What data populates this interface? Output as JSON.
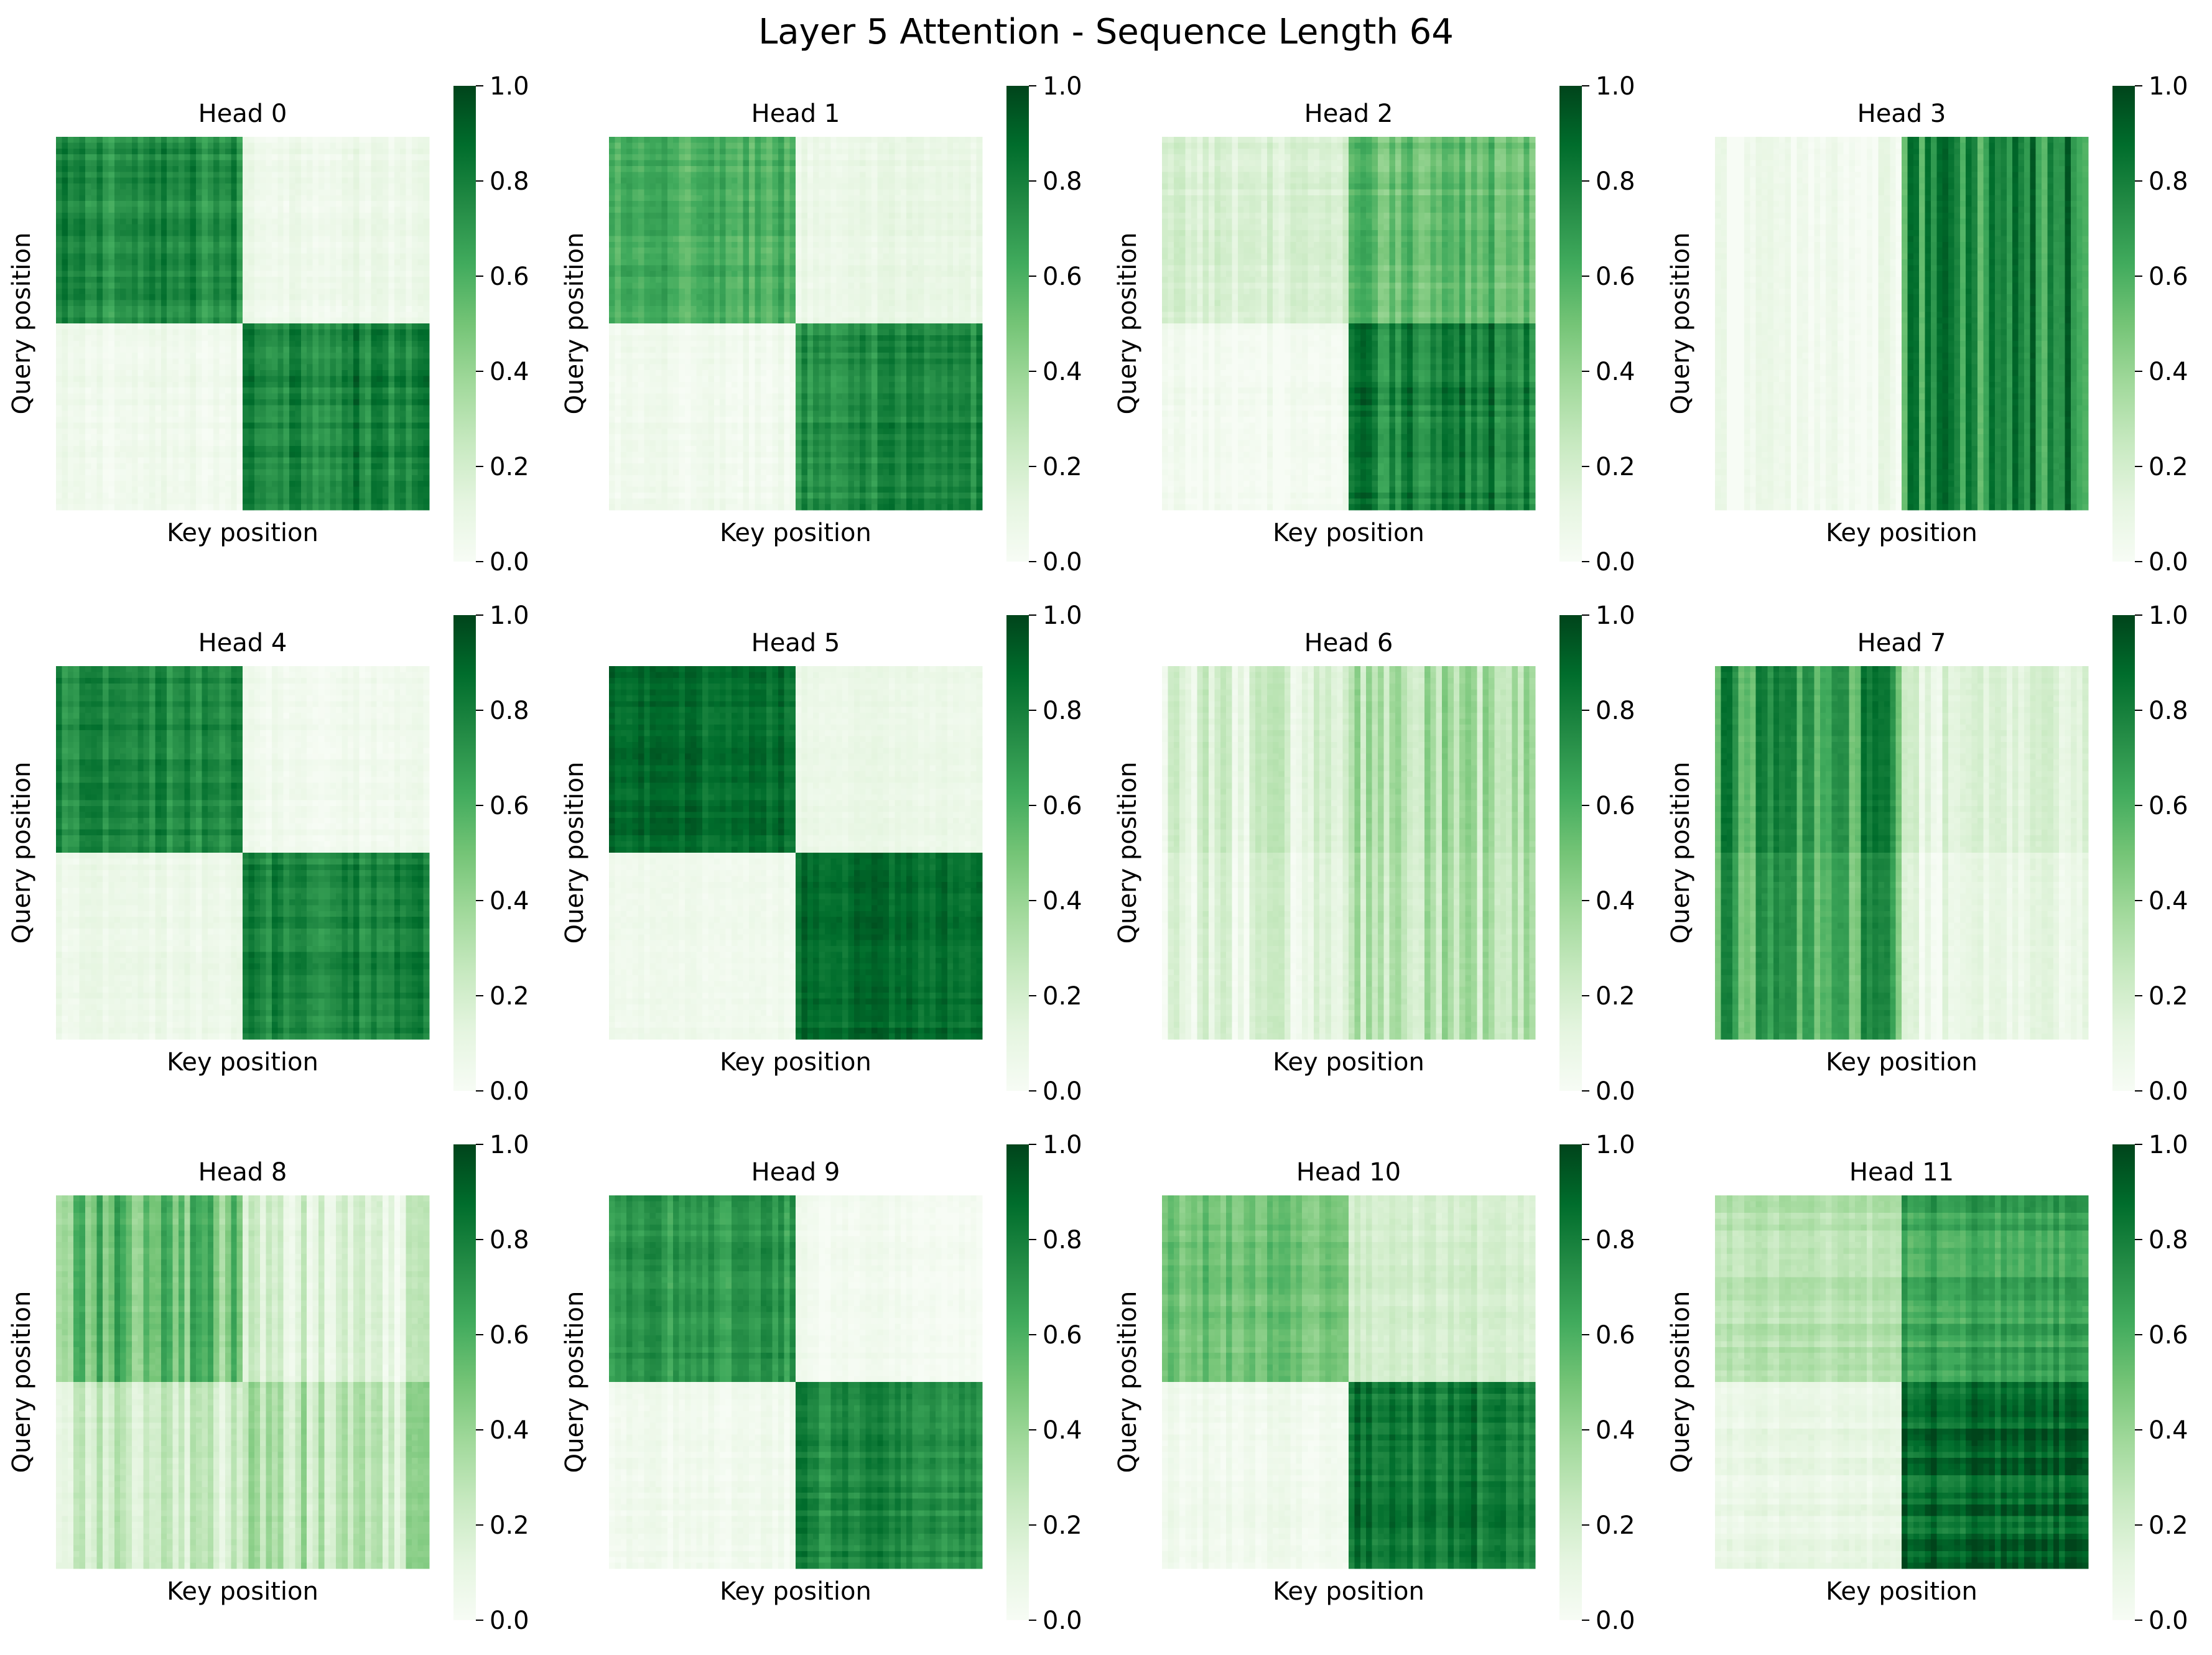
{
  "figure": {
    "title": "Layer 5 Attention - Sequence Length 64"
  },
  "colormap": {
    "name": "Greens",
    "stops": [
      "#f7fcf5",
      "#e5f5e0",
      "#c7e9c0",
      "#a1d99b",
      "#74c476",
      "#41ab5d",
      "#238b45",
      "#006d2c",
      "#00441b"
    ]
  },
  "chart_data": [
    {
      "type": "heatmap",
      "title": "Head 0",
      "xlabel": "Key position",
      "ylabel": "Query position",
      "zlim": [
        0,
        1
      ],
      "colorbar_ticks": [
        "0.0",
        "0.2",
        "0.4",
        "0.6",
        "0.8",
        "1.0"
      ],
      "block_values": [
        [
          0.74,
          0.07
        ],
        [
          0.05,
          0.8
        ]
      ],
      "column_variation": 0.12,
      "row_variation": 0.06
    },
    {
      "type": "heatmap",
      "title": "Head 1",
      "xlabel": "Key position",
      "ylabel": "Query position",
      "zlim": [
        0,
        1
      ],
      "colorbar_ticks": [
        "0.0",
        "0.2",
        "0.4",
        "0.6",
        "0.8",
        "1.0"
      ],
      "block_values": [
        [
          0.6,
          0.08
        ],
        [
          0.04,
          0.74
        ]
      ],
      "column_variation": 0.12,
      "row_variation": 0.05
    },
    {
      "type": "heatmap",
      "title": "Head 2",
      "xlabel": "Key position",
      "ylabel": "Query position",
      "zlim": [
        0,
        1
      ],
      "colorbar_ticks": [
        "0.0",
        "0.2",
        "0.4",
        "0.6",
        "0.8",
        "1.0"
      ],
      "block_values": [
        [
          0.17,
          0.54
        ],
        [
          0.02,
          0.8
        ]
      ],
      "column_variation": 0.15,
      "row_variation": 0.06
    },
    {
      "type": "heatmap",
      "title": "Head 3",
      "xlabel": "Key position",
      "ylabel": "Query position",
      "zlim": [
        0,
        1
      ],
      "colorbar_ticks": [
        "0.0",
        "0.2",
        "0.4",
        "0.6",
        "0.8",
        "1.0"
      ],
      "block_values": [
        [
          0.03,
          0.72
        ],
        [
          0.03,
          0.72
        ]
      ],
      "column_variation": 0.3,
      "row_variation": 0.0
    },
    {
      "type": "heatmap",
      "title": "Head 4",
      "xlabel": "Key position",
      "ylabel": "Query position",
      "zlim": [
        0,
        1
      ],
      "colorbar_ticks": [
        "0.0",
        "0.2",
        "0.4",
        "0.6",
        "0.8",
        "1.0"
      ],
      "block_values": [
        [
          0.76,
          0.05
        ],
        [
          0.07,
          0.79
        ]
      ],
      "column_variation": 0.1,
      "row_variation": 0.05
    },
    {
      "type": "heatmap",
      "title": "Head 5",
      "xlabel": "Key position",
      "ylabel": "Query position",
      "zlim": [
        0,
        1
      ],
      "colorbar_ticks": [
        "0.0",
        "0.2",
        "0.4",
        "0.6",
        "0.8",
        "1.0"
      ],
      "block_values": [
        [
          0.87,
          0.08
        ],
        [
          0.05,
          0.88
        ]
      ],
      "column_variation": 0.06,
      "row_variation": 0.04
    },
    {
      "type": "heatmap",
      "title": "Head 6",
      "xlabel": "Key position",
      "ylabel": "Query position",
      "zlim": [
        0,
        1
      ],
      "colorbar_ticks": [
        "0.0",
        "0.2",
        "0.4",
        "0.6",
        "0.8",
        "1.0"
      ],
      "block_values": [
        [
          0.17,
          0.3
        ],
        [
          0.13,
          0.27
        ]
      ],
      "column_variation": 0.35,
      "row_variation": 0.02
    },
    {
      "type": "heatmap",
      "title": "Head 7",
      "xlabel": "Key position",
      "ylabel": "Query position",
      "zlim": [
        0,
        1
      ],
      "colorbar_ticks": [
        "0.0",
        "0.2",
        "0.4",
        "0.6",
        "0.8",
        "1.0"
      ],
      "block_values": [
        [
          0.68,
          0.13
        ],
        [
          0.62,
          0.07
        ]
      ],
      "column_variation": 0.25,
      "row_variation": 0.02
    },
    {
      "type": "heatmap",
      "title": "Head 8",
      "xlabel": "Key position",
      "ylabel": "Query position",
      "zlim": [
        0,
        1
      ],
      "colorbar_ticks": [
        "0.0",
        "0.2",
        "0.4",
        "0.6",
        "0.8",
        "1.0"
      ],
      "block_values": [
        [
          0.5,
          0.15
        ],
        [
          0.2,
          0.28
        ]
      ],
      "column_variation": 0.35,
      "row_variation": 0.03
    },
    {
      "type": "heatmap",
      "title": "Head 9",
      "xlabel": "Key position",
      "ylabel": "Query position",
      "zlim": [
        0,
        1
      ],
      "colorbar_ticks": [
        "0.0",
        "0.2",
        "0.4",
        "0.6",
        "0.8",
        "1.0"
      ],
      "block_values": [
        [
          0.7,
          0.03
        ],
        [
          0.04,
          0.76
        ]
      ],
      "column_variation": 0.1,
      "row_variation": 0.05
    },
    {
      "type": "heatmap",
      "title": "Head 10",
      "xlabel": "Key position",
      "ylabel": "Query position",
      "zlim": [
        0,
        1
      ],
      "colorbar_ticks": [
        "0.0",
        "0.2",
        "0.4",
        "0.6",
        "0.8",
        "1.0"
      ],
      "block_values": [
        [
          0.52,
          0.2
        ],
        [
          0.05,
          0.82
        ]
      ],
      "column_variation": 0.12,
      "row_variation": 0.05
    },
    {
      "type": "heatmap",
      "title": "Head 11",
      "xlabel": "Key position",
      "ylabel": "Query position",
      "zlim": [
        0,
        1
      ],
      "colorbar_ticks": [
        "0.0",
        "0.2",
        "0.4",
        "0.6",
        "0.8",
        "1.0"
      ],
      "block_values": [
        [
          0.3,
          0.66
        ],
        [
          0.09,
          0.9
        ]
      ],
      "column_variation": 0.08,
      "row_variation": 0.1
    }
  ]
}
